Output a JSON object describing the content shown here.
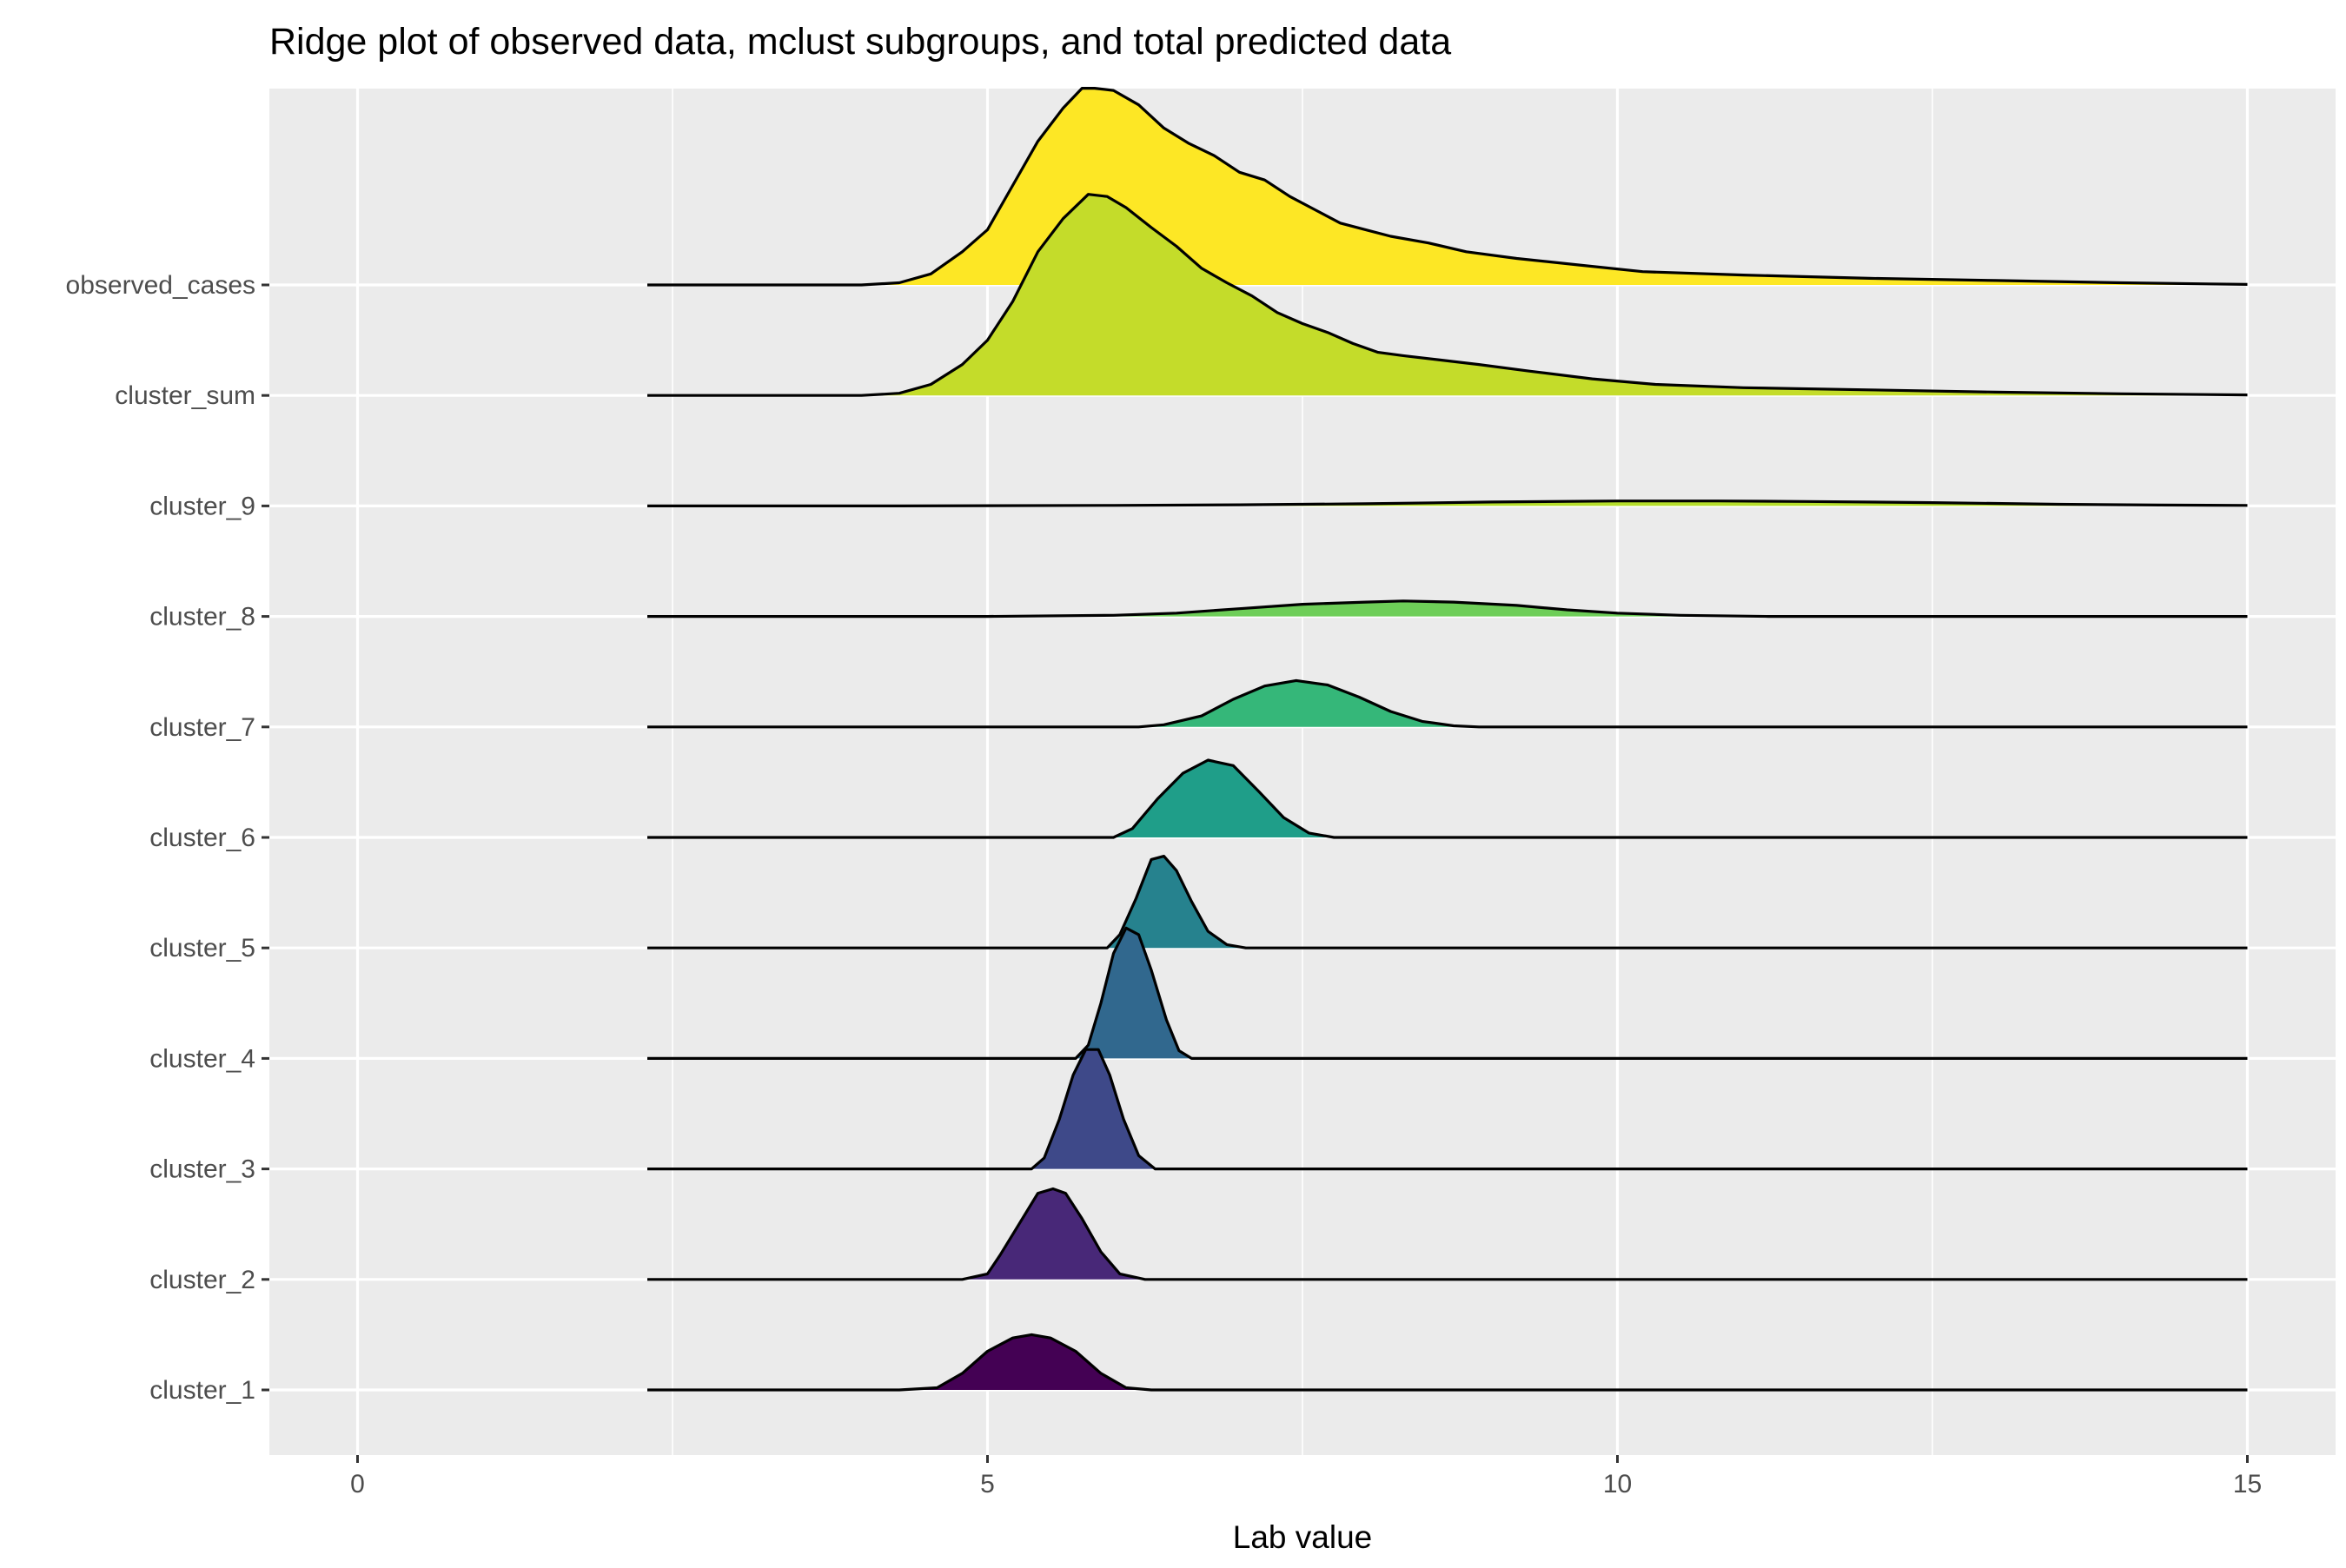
{
  "chart_data": {
    "type": "ridgeline",
    "title": "Ridge plot of observed data, mclust subgroups, and total predicted data",
    "xlabel": "Lab value",
    "ylabel": "",
    "xlim": [
      -0.7,
      15.7
    ],
    "x_ticks": [
      0,
      5,
      10,
      15
    ],
    "x_tick_labels": [
      "0",
      "5",
      "10",
      "15"
    ],
    "grid": true,
    "legend": "none",
    "panel_background": "#ebebeb",
    "grid_color": "#ffffff",
    "line_color": "#000000",
    "x_range_of_densities": [
      2.3,
      15
    ],
    "ridge_scale_rows": 2.0,
    "series": [
      {
        "name": "cluster_1",
        "color": "#440154",
        "points": [
          [
            2.3,
            0
          ],
          [
            4.3,
            0
          ],
          [
            4.6,
            0.02
          ],
          [
            4.8,
            0.15
          ],
          [
            5.0,
            0.35
          ],
          [
            5.2,
            0.47
          ],
          [
            5.35,
            0.5
          ],
          [
            5.5,
            0.47
          ],
          [
            5.7,
            0.35
          ],
          [
            5.9,
            0.15
          ],
          [
            6.1,
            0.02
          ],
          [
            6.3,
            0
          ],
          [
            15,
            0
          ]
        ]
      },
      {
        "name": "cluster_2",
        "color": "#482878",
        "points": [
          [
            2.3,
            0
          ],
          [
            4.8,
            0
          ],
          [
            5.0,
            0.05
          ],
          [
            5.1,
            0.22
          ],
          [
            5.25,
            0.5
          ],
          [
            5.4,
            0.78
          ],
          [
            5.52,
            0.82
          ],
          [
            5.62,
            0.78
          ],
          [
            5.75,
            0.55
          ],
          [
            5.9,
            0.25
          ],
          [
            6.05,
            0.05
          ],
          [
            6.25,
            0
          ],
          [
            15,
            0
          ]
        ]
      },
      {
        "name": "cluster_3",
        "color": "#3e4989",
        "points": [
          [
            2.3,
            0
          ],
          [
            5.35,
            0
          ],
          [
            5.45,
            0.1
          ],
          [
            5.57,
            0.45
          ],
          [
            5.68,
            0.85
          ],
          [
            5.78,
            1.08
          ],
          [
            5.88,
            1.08
          ],
          [
            5.97,
            0.85
          ],
          [
            6.08,
            0.45
          ],
          [
            6.2,
            0.12
          ],
          [
            6.33,
            0
          ],
          [
            15,
            0
          ]
        ]
      },
      {
        "name": "cluster_4",
        "color": "#31688e",
        "points": [
          [
            2.3,
            0
          ],
          [
            5.7,
            0
          ],
          [
            5.8,
            0.12
          ],
          [
            5.9,
            0.5
          ],
          [
            6.0,
            0.95
          ],
          [
            6.1,
            1.18
          ],
          [
            6.2,
            1.12
          ],
          [
            6.3,
            0.8
          ],
          [
            6.42,
            0.35
          ],
          [
            6.52,
            0.07
          ],
          [
            6.62,
            0
          ],
          [
            15,
            0
          ]
        ]
      },
      {
        "name": "cluster_5",
        "color": "#26828e",
        "points": [
          [
            2.3,
            0
          ],
          [
            5.95,
            0
          ],
          [
            6.05,
            0.12
          ],
          [
            6.18,
            0.45
          ],
          [
            6.3,
            0.8
          ],
          [
            6.4,
            0.83
          ],
          [
            6.5,
            0.7
          ],
          [
            6.62,
            0.42
          ],
          [
            6.75,
            0.15
          ],
          [
            6.9,
            0.03
          ],
          [
            7.05,
            0
          ],
          [
            15,
            0
          ]
        ]
      },
      {
        "name": "cluster_6",
        "color": "#1f9e89",
        "points": [
          [
            2.3,
            0
          ],
          [
            6.0,
            0
          ],
          [
            6.15,
            0.08
          ],
          [
            6.35,
            0.35
          ],
          [
            6.55,
            0.58
          ],
          [
            6.75,
            0.7
          ],
          [
            6.95,
            0.65
          ],
          [
            7.15,
            0.42
          ],
          [
            7.35,
            0.18
          ],
          [
            7.55,
            0.04
          ],
          [
            7.75,
            0
          ],
          [
            15,
            0
          ]
        ]
      },
      {
        "name": "cluster_7",
        "color": "#35b779",
        "points": [
          [
            2.3,
            0
          ],
          [
            6.2,
            0
          ],
          [
            6.4,
            0.02
          ],
          [
            6.7,
            0.1
          ],
          [
            6.95,
            0.25
          ],
          [
            7.2,
            0.37
          ],
          [
            7.45,
            0.42
          ],
          [
            7.7,
            0.38
          ],
          [
            7.95,
            0.27
          ],
          [
            8.2,
            0.14
          ],
          [
            8.45,
            0.05
          ],
          [
            8.7,
            0.01
          ],
          [
            8.9,
            0
          ],
          [
            15,
            0
          ]
        ]
      },
      {
        "name": "cluster_8",
        "color": "#6ece58",
        "points": [
          [
            2.3,
            0
          ],
          [
            5.0,
            0
          ],
          [
            6.0,
            0.01
          ],
          [
            6.5,
            0.03
          ],
          [
            7.0,
            0.07
          ],
          [
            7.5,
            0.11
          ],
          [
            8.0,
            0.13
          ],
          [
            8.3,
            0.14
          ],
          [
            8.7,
            0.13
          ],
          [
            9.2,
            0.1
          ],
          [
            9.6,
            0.06
          ],
          [
            10.0,
            0.03
          ],
          [
            10.5,
            0.01
          ],
          [
            11.2,
            0
          ],
          [
            15,
            0
          ]
        ]
      },
      {
        "name": "cluster_9",
        "color": "#b5de2b",
        "points": [
          [
            2.3,
            0
          ],
          [
            4.3,
            0
          ],
          [
            6.0,
            0.005
          ],
          [
            7.0,
            0.01
          ],
          [
            8.0,
            0.02
          ],
          [
            9.0,
            0.035
          ],
          [
            10.0,
            0.045
          ],
          [
            10.8,
            0.045
          ],
          [
            11.5,
            0.04
          ],
          [
            12.5,
            0.03
          ],
          [
            13.5,
            0.015
          ],
          [
            14.3,
            0.008
          ],
          [
            15,
            0.005
          ]
        ]
      },
      {
        "name": "cluster_sum",
        "color": "#c4dc2a",
        "points": [
          [
            2.3,
            0
          ],
          [
            4.0,
            0
          ],
          [
            4.3,
            0.02
          ],
          [
            4.55,
            0.1
          ],
          [
            4.8,
            0.28
          ],
          [
            5.0,
            0.5
          ],
          [
            5.2,
            0.85
          ],
          [
            5.4,
            1.3
          ],
          [
            5.6,
            1.6
          ],
          [
            5.8,
            1.82
          ],
          [
            5.95,
            1.8
          ],
          [
            6.1,
            1.7
          ],
          [
            6.3,
            1.52
          ],
          [
            6.5,
            1.35
          ],
          [
            6.7,
            1.15
          ],
          [
            6.9,
            1.02
          ],
          [
            7.1,
            0.9
          ],
          [
            7.3,
            0.75
          ],
          [
            7.5,
            0.65
          ],
          [
            7.7,
            0.57
          ],
          [
            7.9,
            0.47
          ],
          [
            8.1,
            0.39
          ],
          [
            8.3,
            0.36
          ],
          [
            8.6,
            0.32
          ],
          [
            8.9,
            0.28
          ],
          [
            9.3,
            0.22
          ],
          [
            9.8,
            0.15
          ],
          [
            10.3,
            0.1
          ],
          [
            11.0,
            0.07
          ],
          [
            12.0,
            0.05
          ],
          [
            13.0,
            0.03
          ],
          [
            14.0,
            0.015
          ],
          [
            15,
            0.005
          ]
        ]
      },
      {
        "name": "observed_cases",
        "color": "#fde725",
        "points": [
          [
            2.3,
            0
          ],
          [
            4.0,
            0
          ],
          [
            4.3,
            0.02
          ],
          [
            4.55,
            0.1
          ],
          [
            4.8,
            0.3
          ],
          [
            5.0,
            0.5
          ],
          [
            5.2,
            0.9
          ],
          [
            5.4,
            1.3
          ],
          [
            5.6,
            1.6
          ],
          [
            5.75,
            1.78
          ],
          [
            5.85,
            1.78
          ],
          [
            6.0,
            1.76
          ],
          [
            6.2,
            1.63
          ],
          [
            6.4,
            1.42
          ],
          [
            6.6,
            1.28
          ],
          [
            6.8,
            1.17
          ],
          [
            7.0,
            1.02
          ],
          [
            7.2,
            0.95
          ],
          [
            7.4,
            0.8
          ],
          [
            7.6,
            0.68
          ],
          [
            7.8,
            0.56
          ],
          [
            8.0,
            0.5
          ],
          [
            8.2,
            0.44
          ],
          [
            8.5,
            0.38
          ],
          [
            8.8,
            0.3
          ],
          [
            9.2,
            0.24
          ],
          [
            9.7,
            0.18
          ],
          [
            10.2,
            0.12
          ],
          [
            11.0,
            0.09
          ],
          [
            12.0,
            0.06
          ],
          [
            13.0,
            0.04
          ],
          [
            14.0,
            0.02
          ],
          [
            15,
            0.005
          ]
        ]
      }
    ]
  }
}
